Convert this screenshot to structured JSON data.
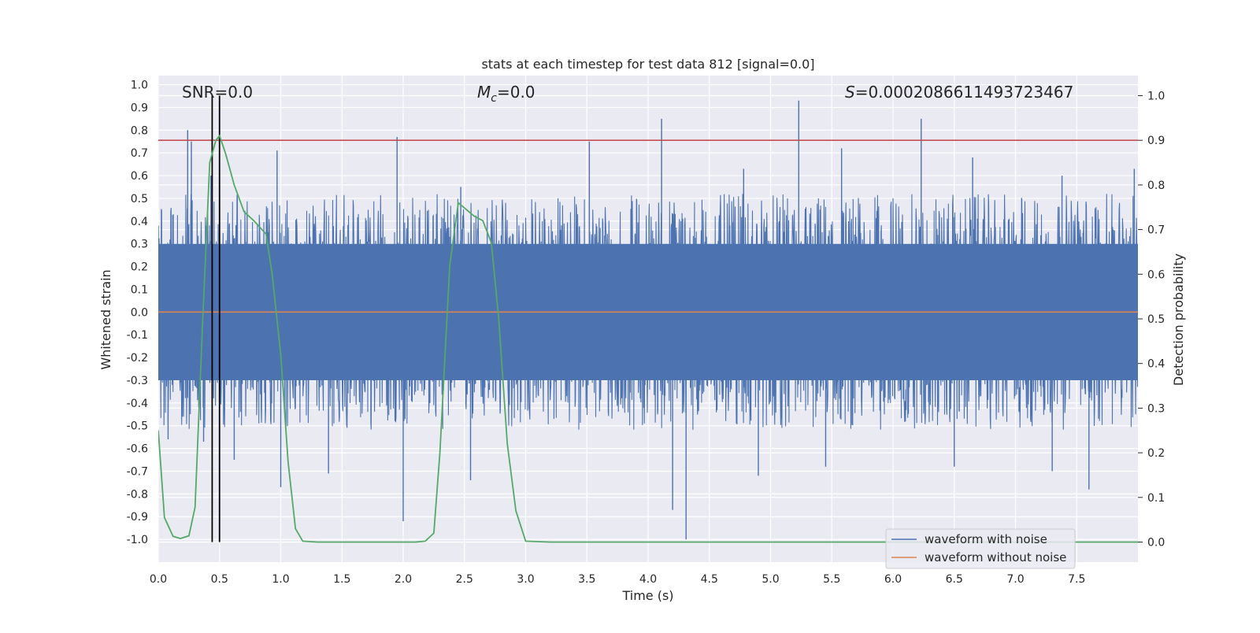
{
  "chart_data": {
    "type": "line",
    "title": "stats at each timestep for test data 812 [signal=0.0]",
    "xlabel": "Time (s)",
    "ylabel": "Whitened strain",
    "y2label": "Detection probability",
    "xlim": [
      0.0,
      8.0
    ],
    "ylim": [
      -1.1,
      1.04
    ],
    "y2lim": [
      -0.045,
      1.045
    ],
    "x_ticks": [
      "0.0",
      "0.5",
      "1.0",
      "1.5",
      "2.0",
      "2.5",
      "3.0",
      "3.5",
      "4.0",
      "4.5",
      "5.0",
      "5.5",
      "6.0",
      "6.5",
      "7.0",
      "7.5"
    ],
    "y_ticks": [
      "1.0",
      "0.9",
      "0.8",
      "0.7",
      "0.6",
      "0.5",
      "0.4",
      "0.3",
      "0.2",
      "0.1",
      "0.0",
      "-0.1",
      "-0.2",
      "-0.3",
      "-0.4",
      "-0.5",
      "-0.6",
      "-0.7",
      "-0.8",
      "-0.9",
      "-1.0"
    ],
    "y2_ticks": [
      "1.0",
      "0.9",
      "0.8",
      "0.7",
      "0.6",
      "0.5",
      "0.4",
      "0.3",
      "0.2",
      "0.1",
      "0.0"
    ],
    "annotations": {
      "snr": "SNR=0.0",
      "mc_symbol": "M",
      "mc_sub": "c",
      "mc_value": "=0.0",
      "s_symbol": "S",
      "s_value": "=0.0002086611493723467"
    },
    "legend": {
      "placement": "bottom-right",
      "entries": [
        "waveform with noise",
        "waveform without noise"
      ]
    },
    "colors": {
      "noise": "#4c72b0",
      "clean": "#dd8452",
      "probability": "#55a868",
      "threshold": "#c44e52",
      "markers": "#000000",
      "background": "#eaeaf2",
      "grid": "#ffffff"
    },
    "series": [
      {
        "name": "waveform with noise",
        "axis": "left",
        "envelope_note": "dense noise, sampled peak values",
        "peaks_up": [
          [
            0.0,
            0.38
          ],
          [
            0.24,
            0.8
          ],
          [
            0.27,
            0.75
          ],
          [
            0.43,
            0.6
          ],
          [
            0.5,
            0.6
          ],
          [
            0.97,
            0.71
          ],
          [
            1.95,
            0.77
          ],
          [
            2.47,
            0.55
          ],
          [
            3.52,
            0.75
          ],
          [
            4.11,
            0.85
          ],
          [
            4.78,
            0.63
          ],
          [
            5.23,
            0.93
          ],
          [
            5.58,
            0.72
          ],
          [
            6.23,
            0.85
          ],
          [
            6.65,
            0.68
          ],
          [
            7.38,
            0.6
          ],
          [
            7.97,
            0.63
          ]
        ],
        "peaks_down": [
          [
            0.08,
            -0.56
          ],
          [
            0.37,
            -0.57
          ],
          [
            0.62,
            -0.65
          ],
          [
            1.0,
            -0.77
          ],
          [
            1.39,
            -0.71
          ],
          [
            2.0,
            -0.92
          ],
          [
            2.55,
            -0.74
          ],
          [
            4.2,
            -0.87
          ],
          [
            4.31,
            -1.0
          ],
          [
            4.9,
            -0.72
          ],
          [
            5.45,
            -0.68
          ],
          [
            6.5,
            -0.68
          ],
          [
            7.3,
            -0.7
          ],
          [
            7.6,
            -0.78
          ]
        ]
      },
      {
        "name": "waveform without noise",
        "axis": "left",
        "x": [
          0.0,
          8.0
        ],
        "values": [
          0.0,
          0.0
        ]
      },
      {
        "name": "detection probability",
        "axis": "right",
        "x": [
          0.0,
          0.05,
          0.12,
          0.18,
          0.25,
          0.3,
          0.36,
          0.42,
          0.47,
          0.5,
          0.55,
          0.62,
          0.7,
          0.78,
          0.88,
          0.93,
          1.0,
          1.06,
          1.12,
          1.18,
          1.3,
          1.5,
          2.0,
          2.1,
          2.18,
          2.25,
          2.3,
          2.38,
          2.45,
          2.58,
          2.65,
          2.72,
          2.78,
          2.85,
          2.92,
          3.0,
          3.2,
          8.0
        ],
        "values": [
          0.25,
          0.055,
          0.013,
          0.008,
          0.014,
          0.078,
          0.48,
          0.85,
          0.9,
          0.91,
          0.87,
          0.8,
          0.74,
          0.72,
          0.69,
          0.6,
          0.42,
          0.18,
          0.03,
          0.002,
          0.0,
          0.0,
          0.0,
          0.0,
          0.002,
          0.02,
          0.2,
          0.62,
          0.76,
          0.73,
          0.72,
          0.67,
          0.5,
          0.22,
          0.07,
          0.002,
          0.0,
          0.0
        ]
      },
      {
        "name": "detection threshold",
        "axis": "right",
        "values": [
          0.9
        ]
      },
      {
        "name": "event markers",
        "axis": "x",
        "values": [
          0.44,
          0.5
        ]
      }
    ]
  }
}
